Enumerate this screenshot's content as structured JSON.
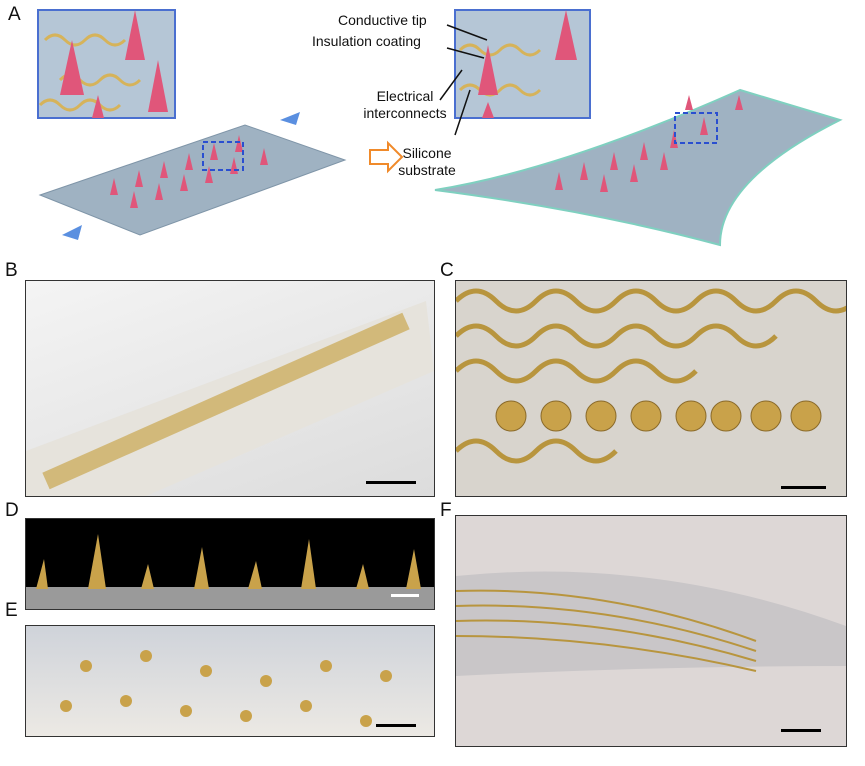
{
  "panels": {
    "a": {
      "label": "A"
    },
    "b": {
      "label": "B"
    },
    "c": {
      "label": "C"
    },
    "d": {
      "label": "D"
    },
    "e": {
      "label": "E"
    },
    "f": {
      "label": "F"
    }
  },
  "annotations": {
    "conductive_tip": "Conductive tip",
    "insulation_coating": "Insulation coating",
    "electrical_interconnects": "Electrical interconnects",
    "silicone_substrate": "Silicone substrate"
  },
  "colors": {
    "inset_border": "#4a6fd0",
    "substrate": "#9fb2c2",
    "needle": "#e0567a",
    "interconnect": "#d6b35a",
    "arrow_stretch": "#5a8fe0",
    "arrow_transform": "#f08a2a"
  }
}
